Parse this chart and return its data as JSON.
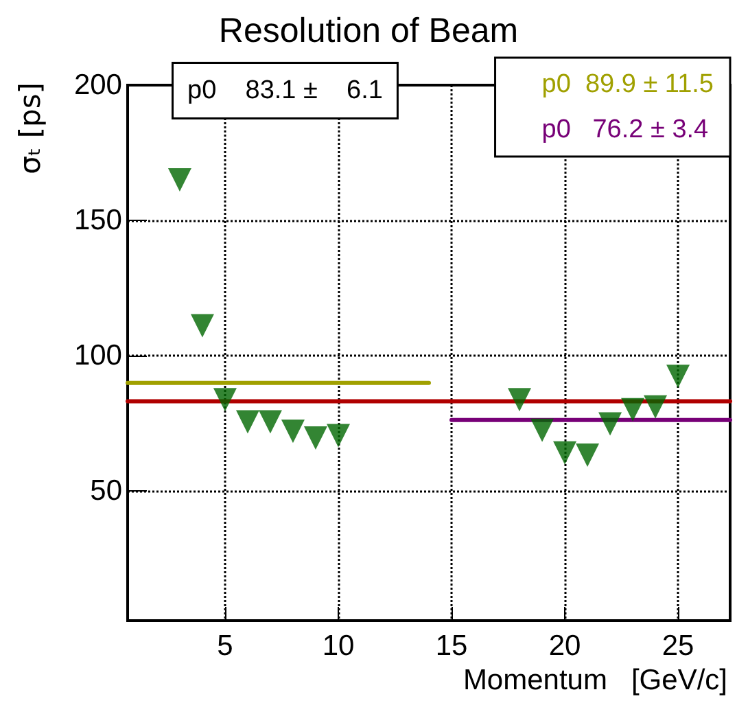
{
  "chart_data": {
    "type": "scatter",
    "title": "Resolution of Beam",
    "xlabel": "Momentum   [GeV/c]",
    "ylabel": "σₜ [ps]",
    "x": [
      3,
      4,
      5,
      6,
      7,
      8,
      9,
      10,
      18,
      19,
      20,
      21,
      22,
      23,
      24,
      25
    ],
    "series": [
      {
        "color": "#006600",
        "marker": "triangle",
        "values": [
          165,
          111,
          83.7,
          75.5,
          75.5,
          72,
          69.5,
          70.4,
          83.7,
          72.4,
          64,
          63.2,
          74.7,
          80,
          81,
          92.3
        ]
      },
      {
        "type": "line",
        "color": "#b00000",
        "x": [
          0.7,
          27.3
        ],
        "values": [
          83.1,
          83.1
        ]
      },
      {
        "type": "line",
        "name": "p0  89.9 ± 11.5",
        "color": "#a0a000",
        "x": [
          0.7,
          14
        ],
        "values": [
          89.9,
          89.9
        ]
      },
      {
        "type": "line",
        "name": "p0   76.2 ± 3.4",
        "color": "#770077",
        "x": [
          15,
          27.3
        ],
        "values": [
          76.2,
          76.2
        ]
      }
    ],
    "annotations": [
      "p0    83.1 ±    6.1"
    ],
    "xlim": [
      0.7,
      27.3
    ],
    "xticks": [
      5,
      10,
      15,
      20,
      25
    ],
    "ylim": [
      2,
      200
    ],
    "yticks": [
      50,
      100,
      150,
      200
    ],
    "grid": true,
    "legend": "top right",
    "line_style": "solid"
  }
}
